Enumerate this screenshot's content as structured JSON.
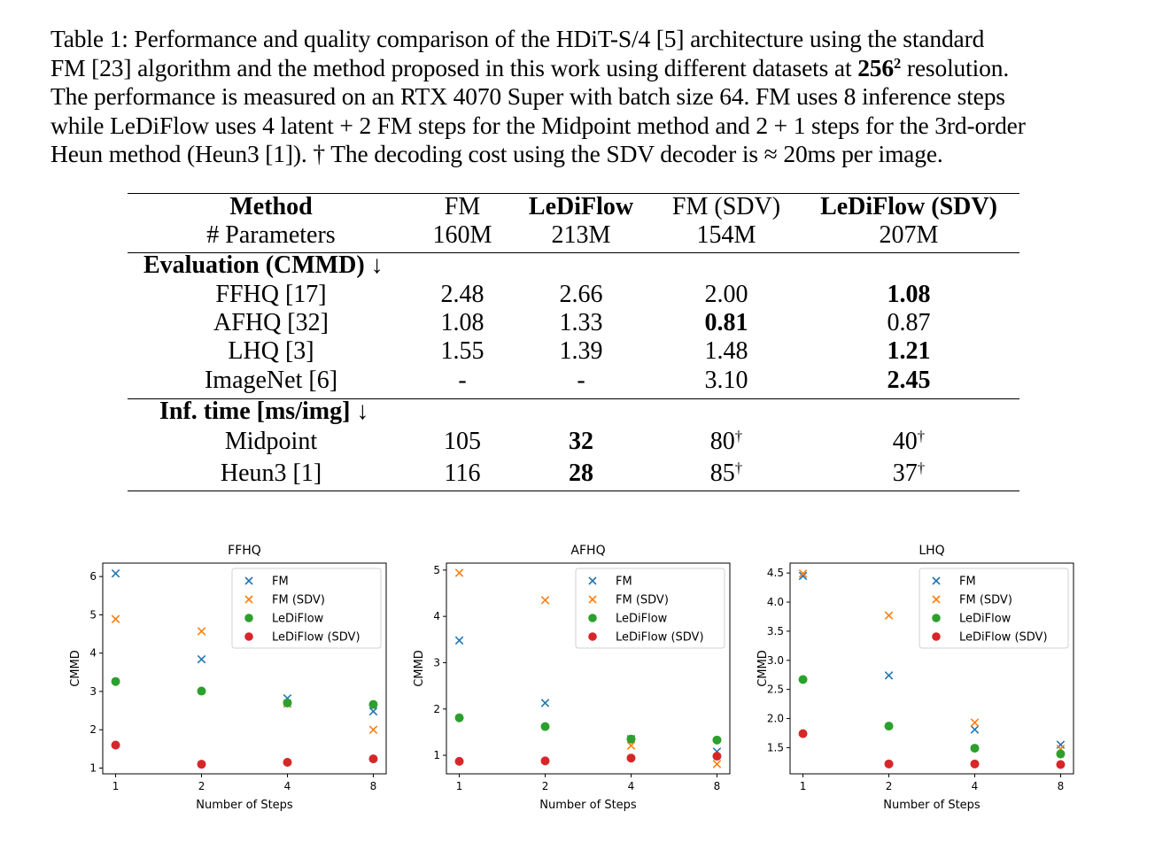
{
  "caption": {
    "lines": [
      "Table 1: Performance and quality comparison of the HDiT-S/4 [5] architecture using the standard",
      "FM [23] algorithm and the method proposed in this work using different datasets at ",
      "The performance is measured on an RTX 4070 Super with batch size 64. FM uses 8 inference steps",
      "while LeDiFlow uses 4 latent + 2 FM steps for the Midpoint method and 2 + 1 steps for the 3rd-order",
      "Heun method (Heun3 [1]). † The decoding cost using the SDV decoder is ≈ 20ms per image."
    ],
    "resolution_base": "256",
    "resolution_exp": "2",
    "resolution_tail": " resolution."
  },
  "table": {
    "header_row1": [
      "Method",
      "FM",
      "LeDiFlow",
      "FM (SDV)",
      "LeDiFlow (SDV)"
    ],
    "header_row2": [
      "# Parameters",
      "160M",
      "213M",
      "154M",
      "207M"
    ],
    "section1_title": "Evaluation (CMMD) ↓",
    "section1_rows": [
      {
        "label": "FFHQ [17]",
        "values": [
          "2.48",
          "2.66",
          "2.00",
          "1.08"
        ]
      },
      {
        "label": "AFHQ [32]",
        "values": [
          "1.08",
          "1.33",
          "0.81",
          "0.87"
        ]
      },
      {
        "label": "LHQ [3]",
        "values": [
          "1.55",
          "1.39",
          "1.48",
          "1.21"
        ]
      },
      {
        "label": "ImageNet [6]",
        "values": [
          "-",
          "-",
          "3.10",
          "2.45"
        ]
      }
    ],
    "section2_title": "Inf. time [ms/img] ↓",
    "section2_rows": [
      {
        "label": "Midpoint",
        "values": [
          "105",
          "32",
          "80",
          "40"
        ]
      },
      {
        "label": "Heun3 [1]",
        "values": [
          "116",
          "28",
          "85",
          "37"
        ]
      }
    ],
    "dagger": "†"
  },
  "chart_data": [
    {
      "type": "scatter",
      "title": "FFHQ",
      "xlabel": "Number of Steps",
      "ylabel": "CMMD",
      "x_scale": "log2",
      "xticks": [
        1,
        2,
        4,
        8
      ],
      "yticks": [
        1,
        2,
        3,
        4,
        5,
        6
      ],
      "ylim": [
        0.85,
        6.35
      ],
      "legend_position": "top-right",
      "series": [
        {
          "name": "FM",
          "marker": "x",
          "color": "#1f77b4",
          "x": [
            1,
            2,
            4,
            8
          ],
          "y": [
            6.08,
            3.84,
            2.82,
            2.48
          ]
        },
        {
          "name": "FM (SDV)",
          "marker": "x",
          "color": "#ff7f0e",
          "x": [
            1,
            2,
            4,
            8
          ],
          "y": [
            4.89,
            4.57,
            2.68,
            2.0
          ]
        },
        {
          "name": "LeDiFlow",
          "marker": "circle",
          "color": "#2ca02c",
          "x": [
            1,
            2,
            4,
            8
          ],
          "y": [
            3.26,
            3.01,
            2.7,
            2.66
          ]
        },
        {
          "name": "LeDiFlow (SDV)",
          "marker": "circle",
          "color": "#d62728",
          "x": [
            1,
            2,
            4,
            8
          ],
          "y": [
            1.6,
            1.1,
            1.15,
            1.24
          ]
        }
      ]
    },
    {
      "type": "scatter",
      "title": "AFHQ",
      "xlabel": "Number of Steps",
      "ylabel": "CMMD",
      "x_scale": "log2",
      "xticks": [
        1,
        2,
        4,
        8
      ],
      "yticks": [
        1,
        2,
        3,
        4,
        5
      ],
      "ylim": [
        0.6,
        5.15
      ],
      "legend_position": "top-right",
      "series": [
        {
          "name": "FM",
          "marker": "x",
          "color": "#1f77b4",
          "x": [
            1,
            2,
            4,
            8
          ],
          "y": [
            3.48,
            2.13,
            1.35,
            1.08
          ]
        },
        {
          "name": "FM (SDV)",
          "marker": "x",
          "color": "#ff7f0e",
          "x": [
            1,
            2,
            4,
            8
          ],
          "y": [
            4.94,
            4.35,
            1.21,
            0.81
          ]
        },
        {
          "name": "LeDiFlow",
          "marker": "circle",
          "color": "#2ca02c",
          "x": [
            1,
            2,
            4,
            8
          ],
          "y": [
            1.81,
            1.62,
            1.35,
            1.33
          ]
        },
        {
          "name": "LeDiFlow (SDV)",
          "marker": "circle",
          "color": "#d62728",
          "x": [
            1,
            2,
            4,
            8
          ],
          "y": [
            0.87,
            0.88,
            0.94,
            0.98
          ]
        }
      ]
    },
    {
      "type": "scatter",
      "title": "LHQ",
      "xlabel": "Number of Steps",
      "ylabel": "CMMD",
      "x_scale": "log2",
      "xticks": [
        1,
        2,
        4,
        8
      ],
      "yticks": [
        1.5,
        2.0,
        2.5,
        3.0,
        3.5,
        4.0,
        4.5
      ],
      "ytick_labels": [
        "1.5",
        "2.0",
        "2.5",
        "3.0",
        "3.5",
        "4.0",
        "4.5"
      ],
      "ylim": [
        1.05,
        4.67
      ],
      "legend_position": "top-right",
      "series": [
        {
          "name": "FM",
          "marker": "x",
          "color": "#1f77b4",
          "x": [
            1,
            2,
            4,
            8
          ],
          "y": [
            4.45,
            2.74,
            1.81,
            1.55
          ]
        },
        {
          "name": "FM (SDV)",
          "marker": "x",
          "color": "#ff7f0e",
          "x": [
            1,
            2,
            4,
            8
          ],
          "y": [
            4.49,
            3.77,
            1.93,
            1.48
          ]
        },
        {
          "name": "LeDiFlow",
          "marker": "circle",
          "color": "#2ca02c",
          "x": [
            1,
            2,
            4,
            8
          ],
          "y": [
            2.67,
            1.87,
            1.49,
            1.39
          ]
        },
        {
          "name": "LeDiFlow (SDV)",
          "marker": "circle",
          "color": "#d62728",
          "x": [
            1,
            2,
            4,
            8
          ],
          "y": [
            1.74,
            1.22,
            1.22,
            1.21
          ]
        }
      ]
    }
  ]
}
